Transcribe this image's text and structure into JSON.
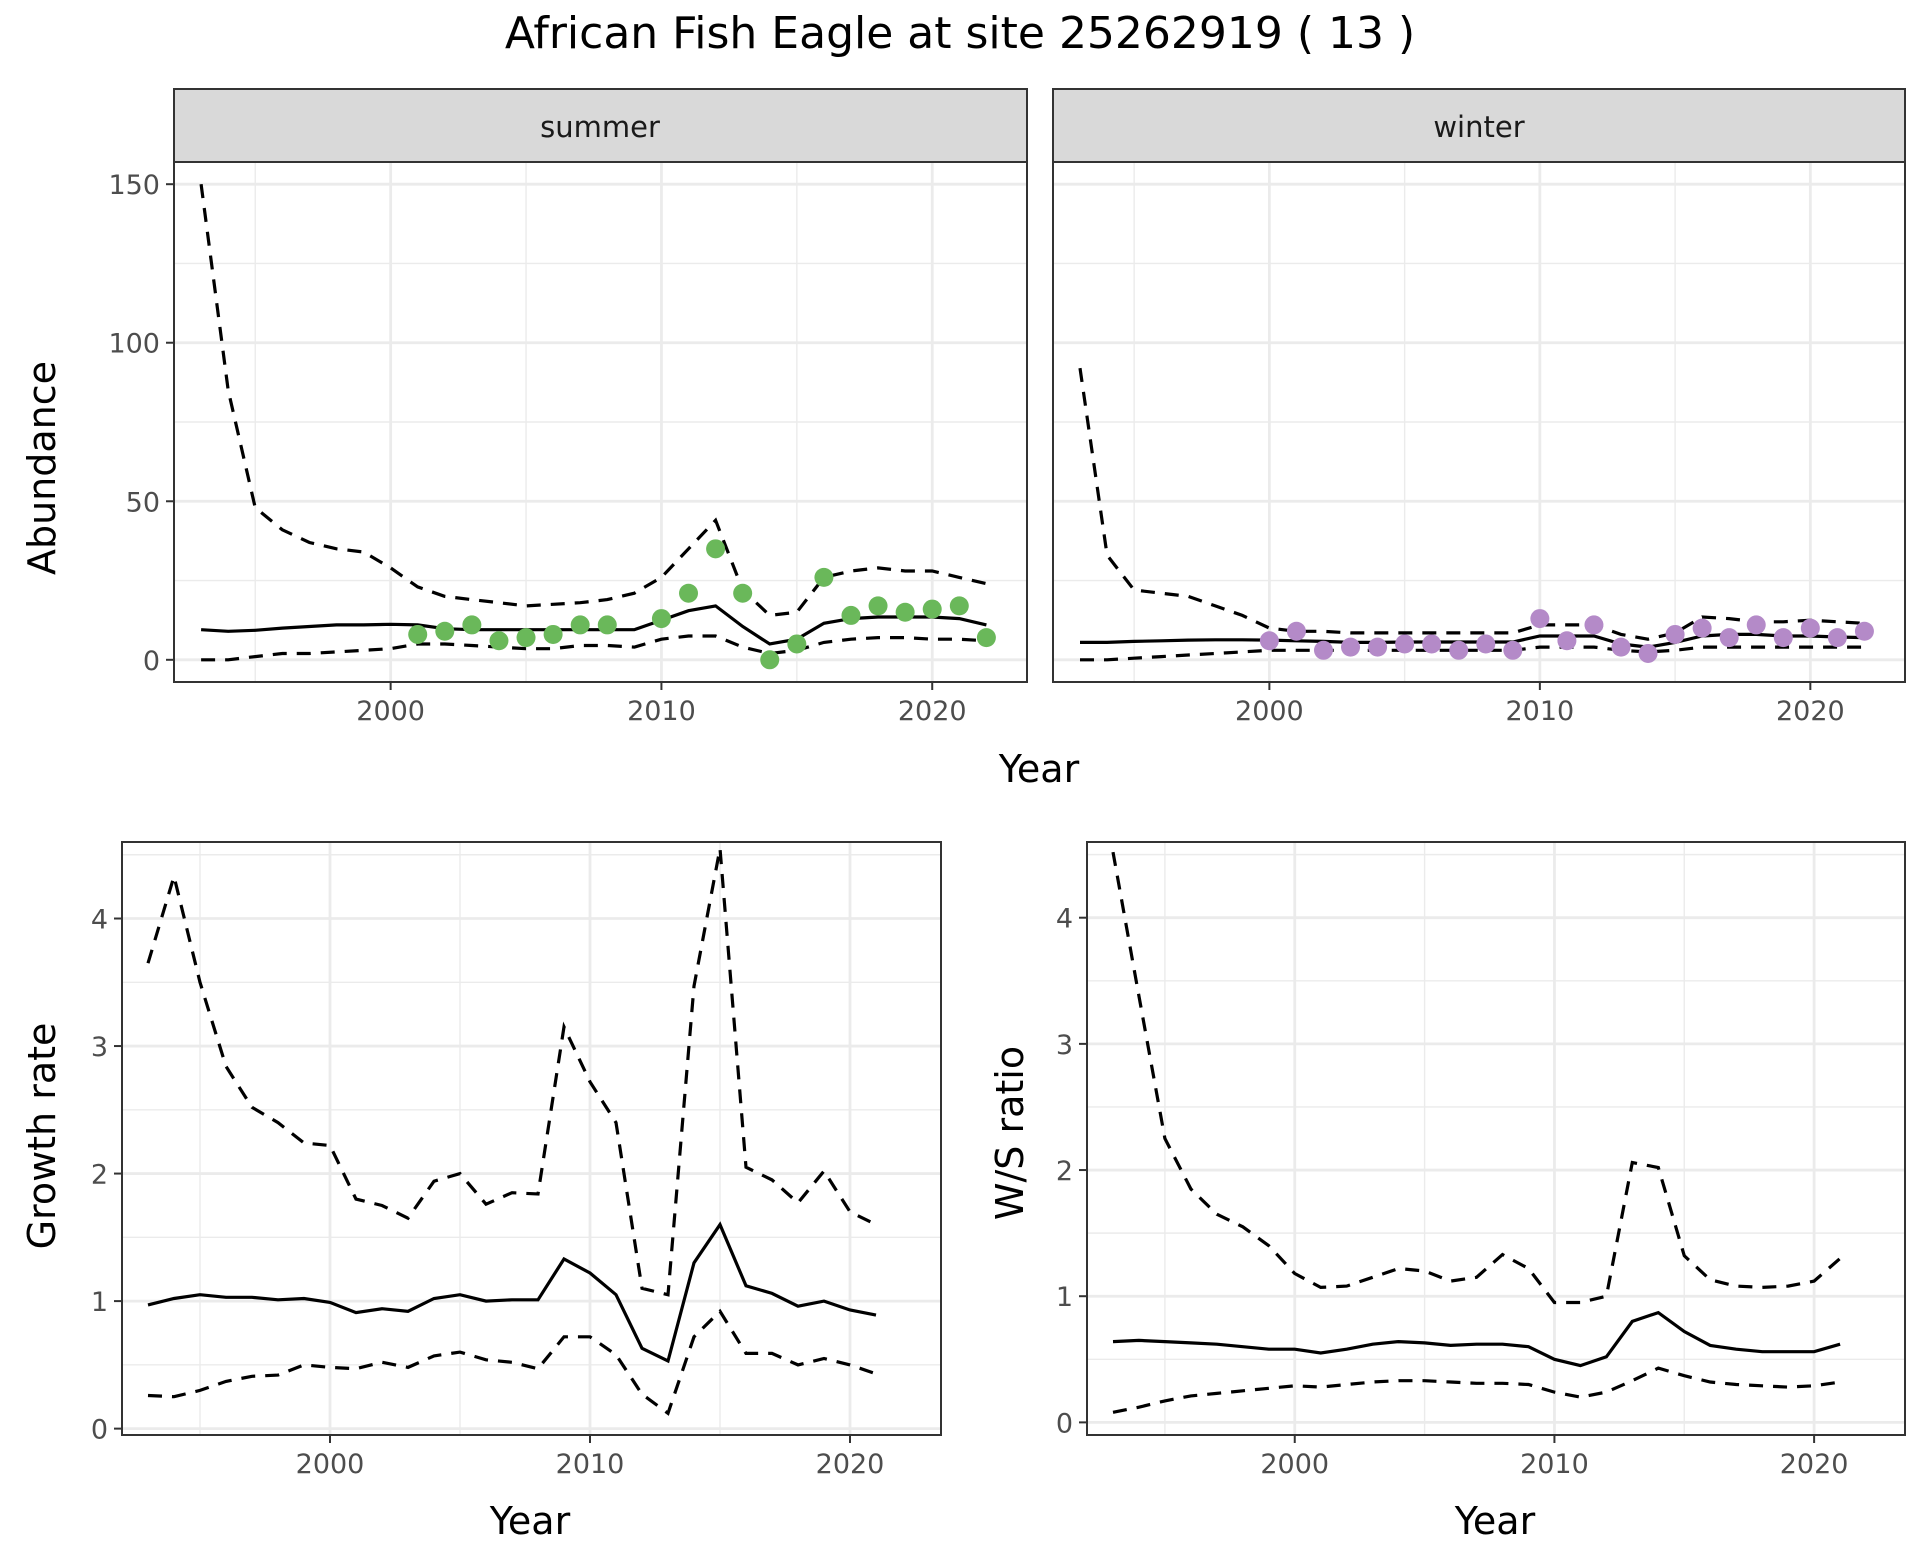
{
  "title": "African Fish Eagle at site 25262919 ( 13 )",
  "colors": {
    "summer": "#6ab85a",
    "winter": "#b48ac8"
  },
  "chart_data": [
    {
      "id": "abundance",
      "type": "line",
      "xlabel": "Year",
      "ylabel": "Abundance",
      "xlim": [
        1992,
        2023.5
      ],
      "ylim": [
        -7,
        157
      ],
      "x_ticks": [
        2000,
        2010,
        2020
      ],
      "y_ticks": [
        0,
        50,
        100,
        150
      ],
      "facets": [
        {
          "name": "summer",
          "x": [
            1993,
            1994,
            1995,
            1996,
            1997,
            1998,
            1999,
            2000,
            2001,
            2002,
            2003,
            2004,
            2005,
            2006,
            2007,
            2008,
            2009,
            2010,
            2011,
            2012,
            2013,
            2014,
            2015,
            2016,
            2017,
            2018,
            2019,
            2020,
            2021,
            2022
          ],
          "estimate": [
            9.5,
            9,
            9.3,
            10,
            10.5,
            11,
            11,
            11.2,
            11,
            9.8,
            9.5,
            9.5,
            9.5,
            9.5,
            9.5,
            9.5,
            9.5,
            12.5,
            15.5,
            17,
            10.5,
            5,
            6.5,
            11.5,
            13,
            13.5,
            13.5,
            13.5,
            13,
            11
          ],
          "lower": [
            0,
            0,
            1,
            2,
            2,
            2.5,
            3,
            3.5,
            5,
            5,
            4.5,
            4,
            3.5,
            3.5,
            4.5,
            4.5,
            4,
            6.5,
            7.5,
            7.5,
            4,
            2,
            3,
            5.5,
            6.5,
            7,
            7,
            6.5,
            6.5,
            6
          ],
          "upper": [
            150,
            85,
            48,
            41,
            37,
            35,
            34,
            29,
            23,
            20,
            19,
            18,
            17,
            17.5,
            18,
            19,
            21,
            26,
            35,
            44,
            22,
            14,
            15,
            26,
            28,
            29,
            28,
            28,
            26,
            24
          ],
          "observed_x": [
            2001,
            2002,
            2003,
            2004,
            2005,
            2006,
            2007,
            2008,
            2010,
            2011,
            2012,
            2013,
            2014,
            2015,
            2016,
            2017,
            2018,
            2019,
            2020,
            2021,
            2022
          ],
          "observed_y": [
            8,
            9,
            11,
            6,
            7,
            8,
            11,
            11,
            13,
            21,
            35,
            21,
            0,
            5,
            26,
            14,
            17,
            15,
            16,
            17,
            7
          ]
        },
        {
          "name": "winter",
          "x": [
            1993,
            1994,
            1995,
            1996,
            1997,
            1998,
            1999,
            2000,
            2001,
            2002,
            2003,
            2004,
            2005,
            2006,
            2007,
            2008,
            2009,
            2010,
            2011,
            2012,
            2013,
            2014,
            2015,
            2016,
            2017,
            2018,
            2019,
            2020,
            2021,
            2022
          ],
          "estimate": [
            5.5,
            5.5,
            5.8,
            6,
            6.2,
            6.3,
            6.3,
            6.2,
            6,
            5.8,
            5.5,
            5.5,
            5.6,
            5.6,
            5.6,
            5.6,
            5.6,
            7.5,
            7.5,
            7.5,
            5,
            4,
            5.5,
            7.5,
            8,
            8,
            7.5,
            7.5,
            7.2,
            7
          ],
          "lower": [
            0,
            0,
            0.5,
            1,
            1.5,
            2,
            2.5,
            3,
            3,
            3,
            3,
            3,
            3,
            3,
            3,
            3,
            3,
            4,
            4,
            4,
            3,
            2.5,
            3,
            4,
            4,
            4,
            4,
            4,
            4,
            4
          ],
          "upper": [
            92,
            33,
            22,
            21,
            20,
            17,
            14,
            10,
            9,
            9,
            8.5,
            8.5,
            8.5,
            8.5,
            8.5,
            8.5,
            8.5,
            11,
            11,
            11,
            8,
            6.5,
            8.5,
            13.5,
            13,
            12,
            12,
            12.5,
            12,
            11.5
          ],
          "observed_x": [
            2000,
            2001,
            2002,
            2003,
            2004,
            2005,
            2006,
            2007,
            2008,
            2009,
            2010,
            2011,
            2012,
            2013,
            2014,
            2015,
            2016,
            2017,
            2018,
            2019,
            2020,
            2021,
            2022
          ],
          "observed_y": [
            6,
            9,
            3,
            4,
            4,
            5,
            5,
            3,
            5,
            3,
            13,
            6,
            11,
            4,
            2,
            8,
            10,
            7,
            11,
            7,
            10,
            7,
            9
          ]
        }
      ]
    },
    {
      "id": "growth",
      "type": "line",
      "xlabel": "Year",
      "ylabel": "Growth rate",
      "xlim": [
        1992,
        2023.5
      ],
      "ylim": [
        -0.05,
        4.6
      ],
      "x_ticks": [
        2000,
        2010,
        2020
      ],
      "y_ticks": [
        0,
        1,
        2,
        3,
        4
      ],
      "x": [
        1993,
        1994,
        1995,
        1996,
        1997,
        1998,
        1999,
        2000,
        2001,
        2002,
        2003,
        2004,
        2005,
        2006,
        2007,
        2008,
        2009,
        2010,
        2011,
        2012,
        2013,
        2014,
        2015,
        2016,
        2017,
        2018,
        2019,
        2020,
        2021
      ],
      "estimate": [
        0.97,
        1.02,
        1.05,
        1.03,
        1.03,
        1.01,
        1.02,
        0.99,
        0.91,
        0.94,
        0.92,
        1.02,
        1.05,
        1.0,
        1.01,
        1.01,
        1.33,
        1.22,
        1.05,
        0.63,
        0.53,
        1.3,
        1.6,
        1.12,
        1.06,
        0.96,
        1.0,
        0.93,
        0.89
      ],
      "lower": [
        0.26,
        0.25,
        0.3,
        0.37,
        0.41,
        0.42,
        0.5,
        0.48,
        0.47,
        0.52,
        0.48,
        0.57,
        0.6,
        0.54,
        0.52,
        0.47,
        0.72,
        0.72,
        0.58,
        0.27,
        0.12,
        0.72,
        0.92,
        0.59,
        0.59,
        0.5,
        0.55,
        0.5,
        0.43
      ],
      "upper": [
        3.65,
        4.33,
        3.5,
        2.84,
        2.52,
        2.4,
        2.24,
        2.22,
        1.8,
        1.75,
        1.65,
        1.94,
        2.0,
        1.76,
        1.85,
        1.84,
        3.15,
        2.72,
        2.4,
        1.1,
        1.05,
        3.47,
        4.55,
        2.05,
        1.95,
        1.77,
        2.02,
        1.7,
        1.6
      ]
    },
    {
      "id": "ws_ratio",
      "type": "line",
      "xlabel": "Year",
      "ylabel": "W/S ratio",
      "xlim": [
        1992,
        2023.5
      ],
      "ylim": [
        -0.1,
        4.6
      ],
      "x_ticks": [
        2000,
        2010,
        2020
      ],
      "y_ticks": [
        0,
        1,
        2,
        3,
        4
      ],
      "x": [
        1993,
        1994,
        1995,
        1996,
        1997,
        1998,
        1999,
        2000,
        2001,
        2002,
        2003,
        2004,
        2005,
        2006,
        2007,
        2008,
        2009,
        2010,
        2011,
        2012,
        2013,
        2014,
        2015,
        2016,
        2017,
        2018,
        2019,
        2020,
        2021
      ],
      "estimate": [
        0.64,
        0.65,
        0.64,
        0.63,
        0.62,
        0.6,
        0.58,
        0.58,
        0.55,
        0.58,
        0.62,
        0.64,
        0.63,
        0.61,
        0.62,
        0.62,
        0.6,
        0.5,
        0.45,
        0.52,
        0.8,
        0.87,
        0.72,
        0.61,
        0.58,
        0.56,
        0.56,
        0.56,
        0.62
      ],
      "lower": [
        0.08,
        0.12,
        0.17,
        0.21,
        0.23,
        0.25,
        0.27,
        0.29,
        0.28,
        0.3,
        0.32,
        0.33,
        0.33,
        0.32,
        0.31,
        0.31,
        0.3,
        0.24,
        0.2,
        0.24,
        0.33,
        0.43,
        0.37,
        0.32,
        0.3,
        0.29,
        0.28,
        0.29,
        0.32
      ],
      "upper": [
        4.52,
        3.38,
        2.25,
        1.85,
        1.65,
        1.55,
        1.4,
        1.18,
        1.07,
        1.08,
        1.15,
        1.22,
        1.2,
        1.12,
        1.15,
        1.33,
        1.22,
        0.95,
        0.95,
        1.0,
        2.06,
        2.02,
        1.32,
        1.13,
        1.08,
        1.07,
        1.08,
        1.12,
        1.3
      ]
    }
  ]
}
